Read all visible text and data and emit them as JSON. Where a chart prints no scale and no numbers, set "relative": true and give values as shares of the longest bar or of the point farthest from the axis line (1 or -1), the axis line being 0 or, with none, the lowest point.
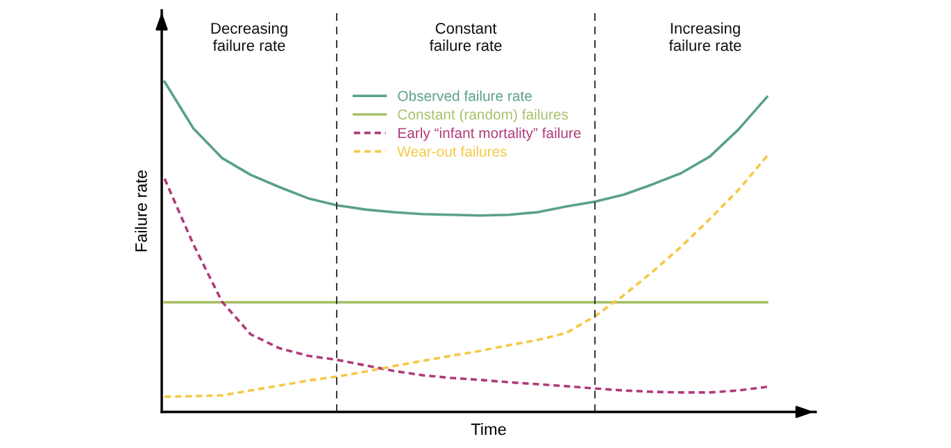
{
  "chart_data": {
    "type": "line",
    "relative": true,
    "xlabel": "Time",
    "ylabel": "Failure rate",
    "legend": "top",
    "categories": [
      null,
      null,
      null,
      null,
      null,
      null,
      null,
      null,
      null,
      null,
      null,
      null,
      null,
      null,
      null,
      null,
      null,
      null,
      null,
      null,
      null,
      null
    ],
    "annotations": [
      "Decreasing\nfailure rate",
      "Constant\nfailure rate",
      "Increasing\nfailure rate"
    ],
    "series": [
      {
        "name": "Observed failure rate",
        "color": "#5aa08c",
        "line_style": "solid",
        "values": [
          1.0,
          0.859,
          0.769,
          0.718,
          0.681,
          0.647,
          0.626,
          0.613,
          0.605,
          0.599,
          0.597,
          0.595,
          0.597,
          0.605,
          0.622,
          0.637,
          0.658,
          0.689,
          0.723,
          0.773,
          0.855,
          0.954
        ]
      },
      {
        "name": "Constant (random) failures",
        "color": "#a9c06a",
        "line_style": "solid",
        "values": [
          0.332,
          0.332,
          0.332,
          0.332,
          0.332,
          0.332,
          0.332,
          0.332,
          0.332,
          0.332,
          0.332,
          0.332,
          0.332,
          0.332,
          0.332,
          0.332,
          0.332,
          0.332,
          0.332,
          0.332,
          0.332,
          0.332
        ]
      },
      {
        "name": "Early “infant mortality” failure",
        "color": "#b03a7a",
        "line_style": "dashed",
        "values": [
          0.706,
          0.508,
          0.334,
          0.235,
          0.193,
          0.17,
          0.158,
          0.141,
          0.124,
          0.111,
          0.103,
          0.097,
          0.09,
          0.084,
          0.078,
          0.071,
          0.065,
          0.061,
          0.059,
          0.059,
          0.065,
          0.076
        ]
      },
      {
        "name": "Wear-out failures",
        "color": "#f5c842",
        "line_style": "dashed",
        "values": [
          0.046,
          0.048,
          0.05,
          0.065,
          0.08,
          0.095,
          0.107,
          0.122,
          0.139,
          0.155,
          0.17,
          0.185,
          0.202,
          0.218,
          0.239,
          0.29,
          0.353,
          0.424,
          0.5,
          0.584,
          0.672,
          0.775
        ]
      }
    ]
  }
}
